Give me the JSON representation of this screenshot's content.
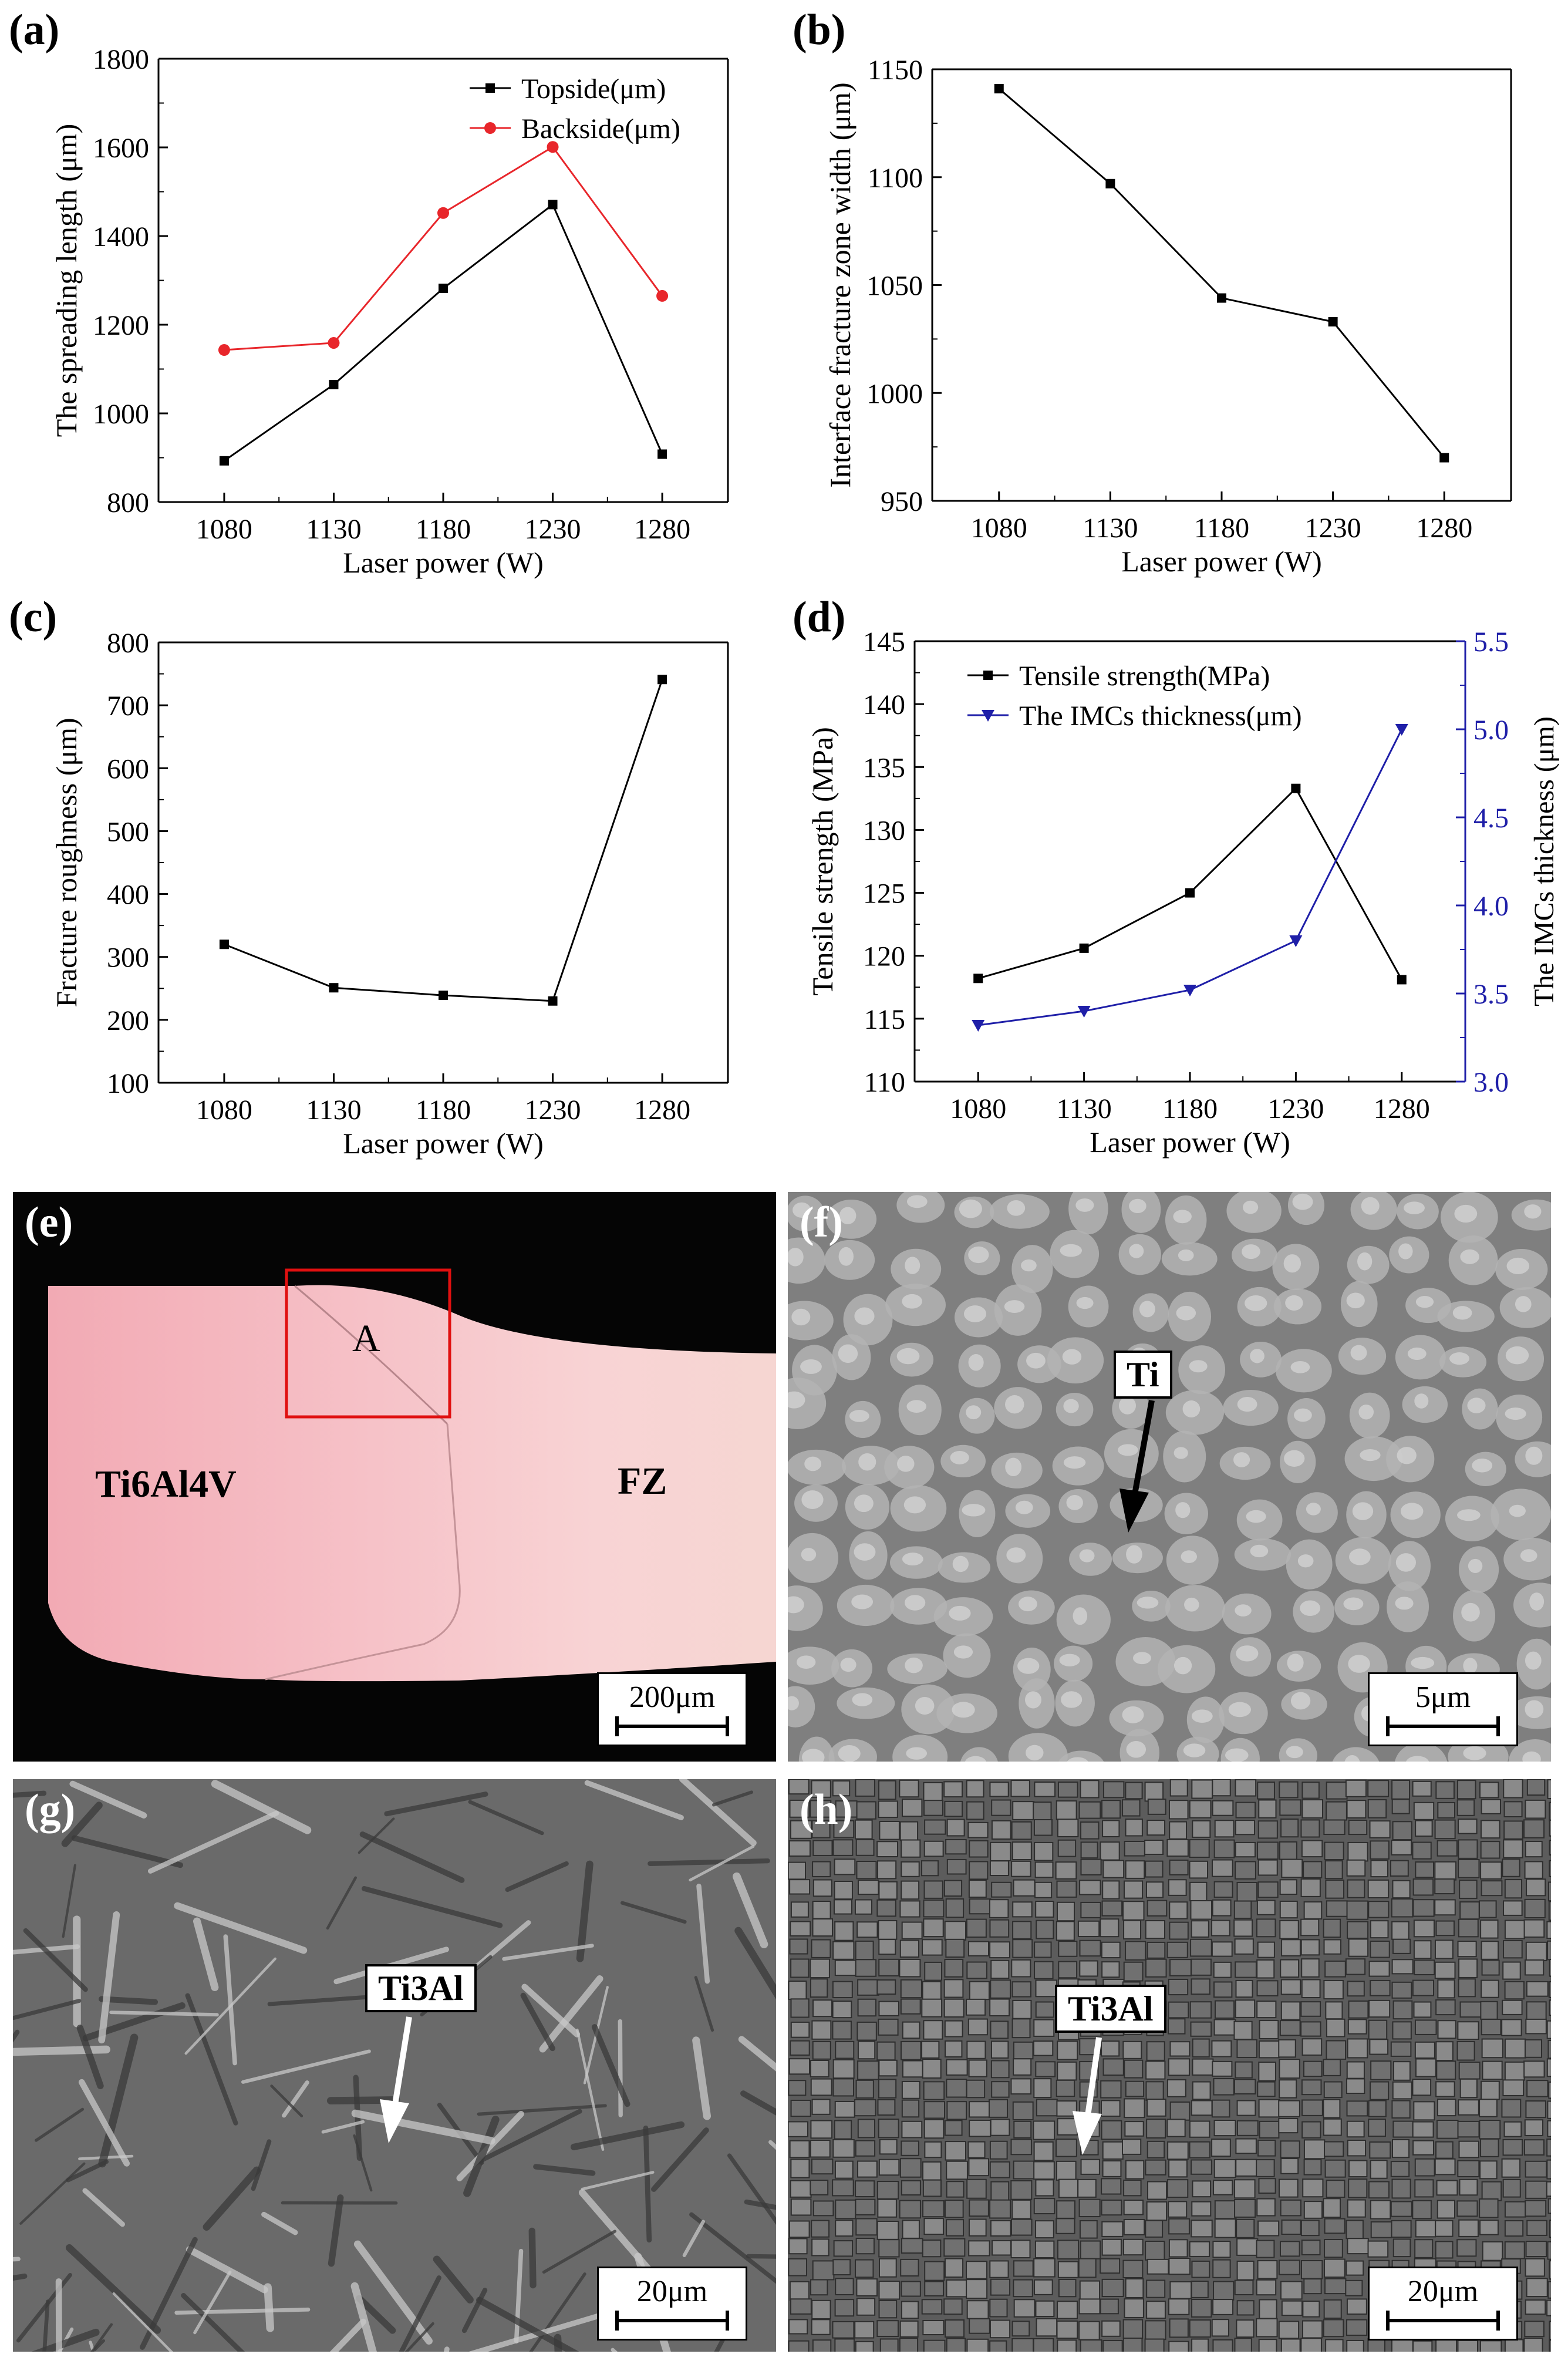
{
  "chart_data": [
    {
      "panel": "(a)",
      "type": "line",
      "x": [
        1080,
        1130,
        1180,
        1230,
        1280
      ],
      "xlabel": "Laser power (W)",
      "ylabel": "The spreading length (μm)",
      "xticks": [
        "1080",
        "1130",
        "1180",
        "1230",
        "1280"
      ],
      "yticks": [
        "800",
        "1000",
        "1200",
        "1400",
        "1600",
        "1800"
      ],
      "xlim": [
        1050,
        1310
      ],
      "ylim": [
        800,
        1800
      ],
      "legend": "top-right",
      "series": [
        {
          "name": "Topside(μm)",
          "values": [
            893,
            1065,
            1282,
            1471,
            908
          ],
          "color": "#000000",
          "marker": "square"
        },
        {
          "name": "Backside(μm)",
          "values": [
            1143,
            1159,
            1452,
            1601,
            1265
          ],
          "color": "#e8262b",
          "marker": "circle"
        }
      ]
    },
    {
      "panel": "(b)",
      "type": "line",
      "x": [
        1080,
        1130,
        1180,
        1230,
        1280
      ],
      "xlabel": "Laser power (W)",
      "ylabel": "Interface fracture zone width (μm)",
      "xticks": [
        "1080",
        "1130",
        "1180",
        "1230",
        "1280"
      ],
      "yticks": [
        "950",
        "1000",
        "1050",
        "1100",
        "1150"
      ],
      "xlim": [
        1050,
        1310
      ],
      "ylim": [
        950,
        1150
      ],
      "series": [
        {
          "values": [
            1141,
            1097,
            1044,
            1033,
            970
          ],
          "color": "#000000",
          "marker": "square"
        }
      ]
    },
    {
      "panel": "(c)",
      "type": "line",
      "x": [
        1080,
        1130,
        1180,
        1230,
        1280
      ],
      "xlabel": "Laser power (W)",
      "ylabel": "Fracture roughness (μm)",
      "xticks": [
        "1080",
        "1130",
        "1180",
        "1230",
        "1280"
      ],
      "yticks": [
        "100",
        "200",
        "300",
        "400",
        "500",
        "600",
        "700",
        "800"
      ],
      "xlim": [
        1050,
        1310
      ],
      "ylim": [
        100,
        800
      ],
      "series": [
        {
          "values": [
            320,
            251,
            239,
            230,
            741
          ],
          "color": "#000000",
          "marker": "square"
        }
      ]
    },
    {
      "panel": "(d)",
      "type": "line",
      "x": [
        1080,
        1130,
        1180,
        1230,
        1280
      ],
      "xlabel": "Laser power (W)",
      "ylabel": "Tensile strength (MPa)",
      "y2label": "The IMCs thickness (μm)",
      "xticks": [
        "1080",
        "1130",
        "1180",
        "1230",
        "1280"
      ],
      "yticks": [
        "110",
        "115",
        "120",
        "125",
        "130",
        "135",
        "140",
        "145"
      ],
      "y2ticks": [
        "3.0",
        "3.5",
        "4.0",
        "4.5",
        "5.0",
        "5.5"
      ],
      "xlim": [
        1050,
        1310
      ],
      "ylim": [
        110,
        145
      ],
      "y2lim": [
        3.0,
        5.5
      ],
      "legend": "top-left",
      "series": [
        {
          "name": "Tensile strength(MPa)",
          "values": [
            118.2,
            120.6,
            125.0,
            133.3,
            118.1
          ],
          "color": "#000000",
          "marker": "square",
          "axis": "left"
        },
        {
          "name": "The IMCs thickness(μm)",
          "values": [
            3.32,
            3.4,
            3.52,
            3.8,
            5.0
          ],
          "color": "#1f1fa8",
          "marker": "triangle-down",
          "axis": "right"
        }
      ]
    }
  ],
  "images": {
    "e": {
      "label": "(e)",
      "region_label": "A",
      "left_label": "Ti6Al4V",
      "right_label": "FZ",
      "scale": "200μm"
    },
    "f": {
      "label": "(f)",
      "phase_label": "Ti",
      "scale": "5μm"
    },
    "g": {
      "label": "(g)",
      "phase_label": "Ti3Al",
      "scale": "20μm"
    },
    "h": {
      "label": "(h)",
      "phase_label": "Ti3Al",
      "scale": "20μm"
    }
  }
}
